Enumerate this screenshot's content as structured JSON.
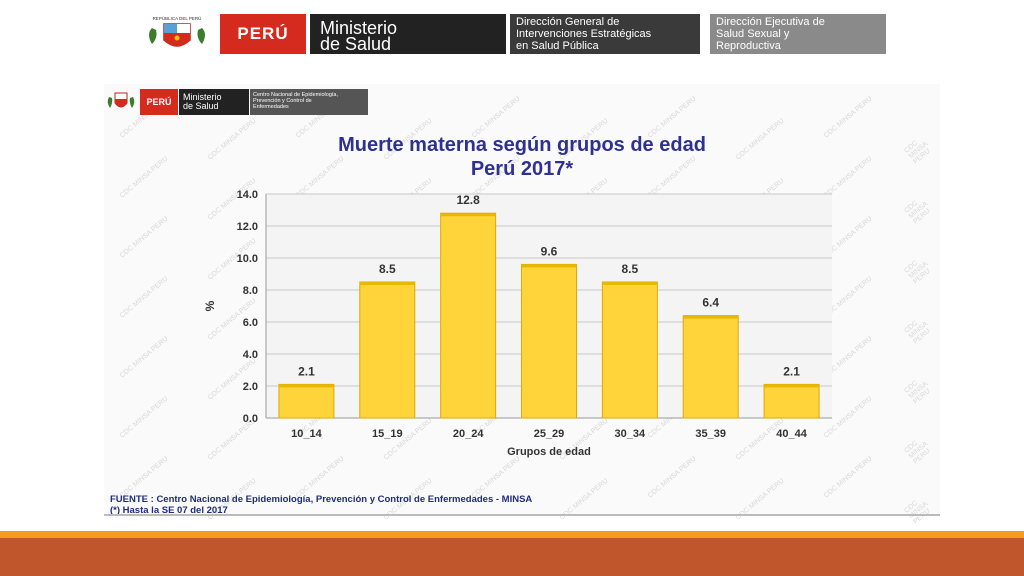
{
  "header": {
    "crest_caption": "REPÚBLICA DEL PERÚ",
    "peru": "PERÚ",
    "ministry_line1": "Ministerio",
    "ministry_line2": "de Salud",
    "dir1_line1": "Dirección General de",
    "dir1_line2": "Intervenciones Estratégicas",
    "dir1_line3": "en Salud Pública",
    "dir2_line1": "Dirección Ejecutiva de",
    "dir2_line2": "Salud Sexual y",
    "dir2_line3": "Reproductiva"
  },
  "slide": {
    "mini_peru": "PERÚ",
    "mini_ministry_line1": "Ministerio",
    "mini_ministry_line2": "de Salud",
    "mini_cne_line1": "Centro Nacional de Epidemiología,",
    "mini_cne_line2": "Prevención y Control de",
    "mini_cne_line3": "Enfermedades",
    "watermark_text": "CDC MINSA PERU",
    "footnote_line1": "FUENTE : Centro Nacional de Epidemiología, Prevención y Control de Enfermedades - MINSA",
    "footnote_line2": "(*) Hasta la SE 07 del 2017"
  },
  "chart_data": {
    "type": "bar",
    "title": "Muerte materna según grupos de edad",
    "subtitle": "Perú 2017*",
    "xlabel": "Grupos de edad",
    "ylabel": "%",
    "categories": [
      "10_14",
      "15_19",
      "20_24",
      "25_29",
      "30_34",
      "35_39",
      "40_44"
    ],
    "values": [
      2.1,
      8.5,
      12.8,
      9.6,
      8.5,
      6.4,
      2.1
    ],
    "ylim": [
      0,
      14
    ],
    "yticks": [
      "0.0",
      "2.0",
      "4.0",
      "6.0",
      "8.0",
      "10.0",
      "12.0",
      "14.0"
    ],
    "grid": true,
    "bar_color": "#ffd43b",
    "bar_edge_color": "#e0a800"
  },
  "colors": {
    "title": "#2e3192",
    "accent_orange": "#f59c1a",
    "accent_rust": "#c0562b",
    "peru_red": "#d52b1e"
  }
}
